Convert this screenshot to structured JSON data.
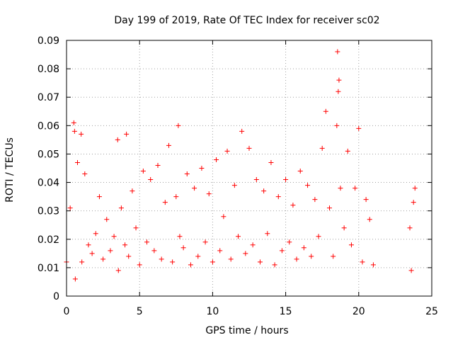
{
  "chart_data": {
    "type": "scatter",
    "title": "Day 199 of 2019, Rate Of TEC Index for receiver sc02",
    "xlabel": "GPS time / hours",
    "ylabel": "ROTI / TECUs",
    "xlim": [
      0,
      25
    ],
    "ylim": [
      0,
      0.09
    ],
    "x_ticks": [
      "0",
      "5",
      "10",
      "15",
      "20",
      "25"
    ],
    "y_ticks": [
      "0",
      "0.01",
      "0.02",
      "0.03",
      "0.04",
      "0.05",
      "0.06",
      "0.07",
      "0.08",
      "0.09"
    ],
    "x_tick_values": [
      0,
      5,
      10,
      15,
      20,
      25
    ],
    "y_tick_values": [
      0,
      0.01,
      0.02,
      0.03,
      0.04,
      0.05,
      0.06,
      0.07,
      0.08,
      0.09
    ],
    "grid": true,
    "marker": "+",
    "color": "#ff0000",
    "series": [
      {
        "x": [
          0.0,
          0.25,
          0.5,
          0.55,
          0.6,
          0.75,
          1.0,
          1.05,
          1.25,
          1.5,
          1.75,
          2.0,
          2.25,
          2.5,
          2.75,
          3.0,
          3.25,
          3.5,
          3.55,
          3.75,
          4.0,
          4.1,
          4.25,
          4.5,
          4.75,
          5.0,
          5.25,
          5.5,
          5.75,
          6.0,
          6.25,
          6.5,
          6.75,
          7.0,
          7.25,
          7.5,
          7.65,
          7.75,
          8.0,
          8.25,
          8.5,
          8.75,
          9.0,
          9.25,
          9.5,
          9.75,
          10.0,
          10.25,
          10.5,
          10.75,
          11.0,
          11.25,
          11.5,
          11.75,
          12.0,
          12.25,
          12.5,
          12.75,
          13.0,
          13.25,
          13.5,
          13.75,
          14.0,
          14.25,
          14.5,
          14.75,
          15.0,
          15.25,
          15.5,
          15.75,
          16.0,
          16.25,
          16.5,
          16.75,
          17.0,
          17.25,
          17.5,
          17.75,
          18.0,
          18.25,
          18.5,
          18.55,
          18.6,
          18.65,
          18.75,
          19.0,
          19.25,
          19.5,
          19.75,
          20.0,
          20.25,
          20.5,
          20.75,
          21.0,
          23.5,
          23.6,
          23.75,
          23.85
        ],
        "y": [
          0.012,
          0.031,
          0.061,
          0.058,
          0.006,
          0.047,
          0.057,
          0.012,
          0.043,
          0.018,
          0.015,
          0.022,
          0.035,
          0.013,
          0.027,
          0.016,
          0.021,
          0.055,
          0.009,
          0.031,
          0.018,
          0.057,
          0.014,
          0.037,
          0.024,
          0.011,
          0.044,
          0.019,
          0.041,
          0.016,
          0.046,
          0.013,
          0.033,
          0.053,
          0.012,
          0.035,
          0.06,
          0.021,
          0.017,
          0.043,
          0.011,
          0.038,
          0.014,
          0.045,
          0.019,
          0.036,
          0.012,
          0.048,
          0.016,
          0.028,
          0.051,
          0.013,
          0.039,
          0.021,
          0.058,
          0.015,
          0.052,
          0.018,
          0.041,
          0.012,
          0.037,
          0.022,
          0.047,
          0.011,
          0.035,
          0.016,
          0.041,
          0.019,
          0.032,
          0.013,
          0.044,
          0.017,
          0.039,
          0.014,
          0.034,
          0.021,
          0.052,
          0.065,
          0.031,
          0.014,
          0.06,
          0.086,
          0.072,
          0.076,
          0.038,
          0.024,
          0.051,
          0.018,
          0.038,
          0.059,
          0.012,
          0.034,
          0.027,
          0.011,
          0.024,
          0.009,
          0.033,
          0.038
        ]
      }
    ]
  }
}
